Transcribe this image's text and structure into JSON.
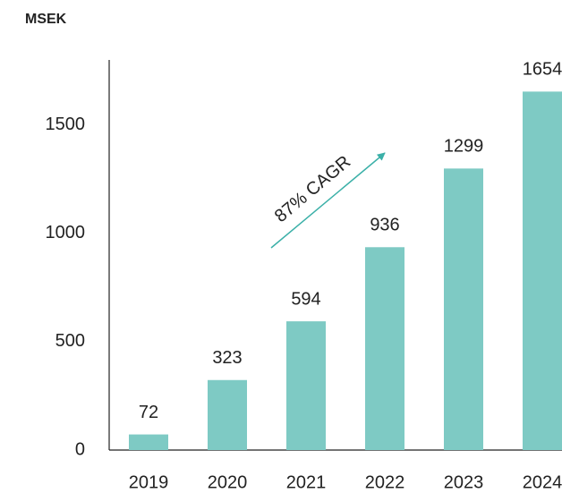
{
  "chart_data": {
    "type": "bar",
    "title": "MSEK",
    "categories": [
      "2019",
      "2020",
      "2021",
      "2022",
      "2023",
      "2024"
    ],
    "values": [
      72,
      323,
      594,
      936,
      1299,
      1654
    ],
    "color": "#7ecac4",
    "ylim": [
      0,
      1800
    ],
    "yticks": [
      0,
      500,
      1000,
      1500
    ],
    "grid": false,
    "annotation": "87% CAGR"
  }
}
